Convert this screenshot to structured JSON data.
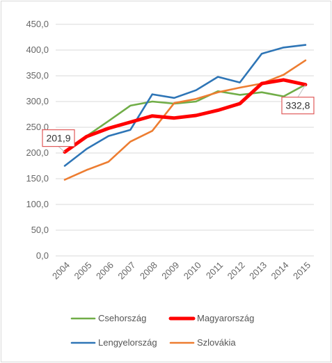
{
  "chart_data": {
    "type": "line",
    "categories": [
      "2004",
      "2005",
      "2006",
      "2007",
      "2008",
      "2009",
      "2010",
      "2011",
      "2012",
      "2013",
      "2014",
      "2015"
    ],
    "y_ticks": [
      "0,0",
      "50,0",
      "100,0",
      "150,0",
      "200,0",
      "250,0",
      "300,0",
      "350,0",
      "400,0",
      "450,0"
    ],
    "ylim": [
      0,
      450
    ],
    "grid": true,
    "legend_position": "bottom",
    "series": [
      {
        "name": "Csehország",
        "color": "#70AD47",
        "values": [
          203,
          233,
          262,
          292,
          300,
          296,
          300,
          320,
          313,
          318,
          310,
          333
        ]
      },
      {
        "name": "Magyarország",
        "color": "#FF0000",
        "bold": true,
        "values": [
          201.9,
          232,
          248,
          260,
          272,
          268,
          273,
          283,
          296,
          335,
          342,
          332.8
        ]
      },
      {
        "name": "Lengyelország",
        "color": "#2E75B6",
        "values": [
          175,
          208,
          233,
          245,
          314,
          307,
          322,
          348,
          337,
          393,
          405,
          410
        ]
      },
      {
        "name": "Szlovákia",
        "color": "#ED7D31",
        "values": [
          148,
          167,
          183,
          222,
          243,
          297,
          305,
          318,
          327,
          335,
          352,
          380
        ]
      }
    ],
    "annotations": [
      {
        "label": "201,9",
        "series": "Magyarország",
        "category": "2004"
      },
      {
        "label": "332,8",
        "series": "Magyarország",
        "category": "2015"
      }
    ]
  }
}
